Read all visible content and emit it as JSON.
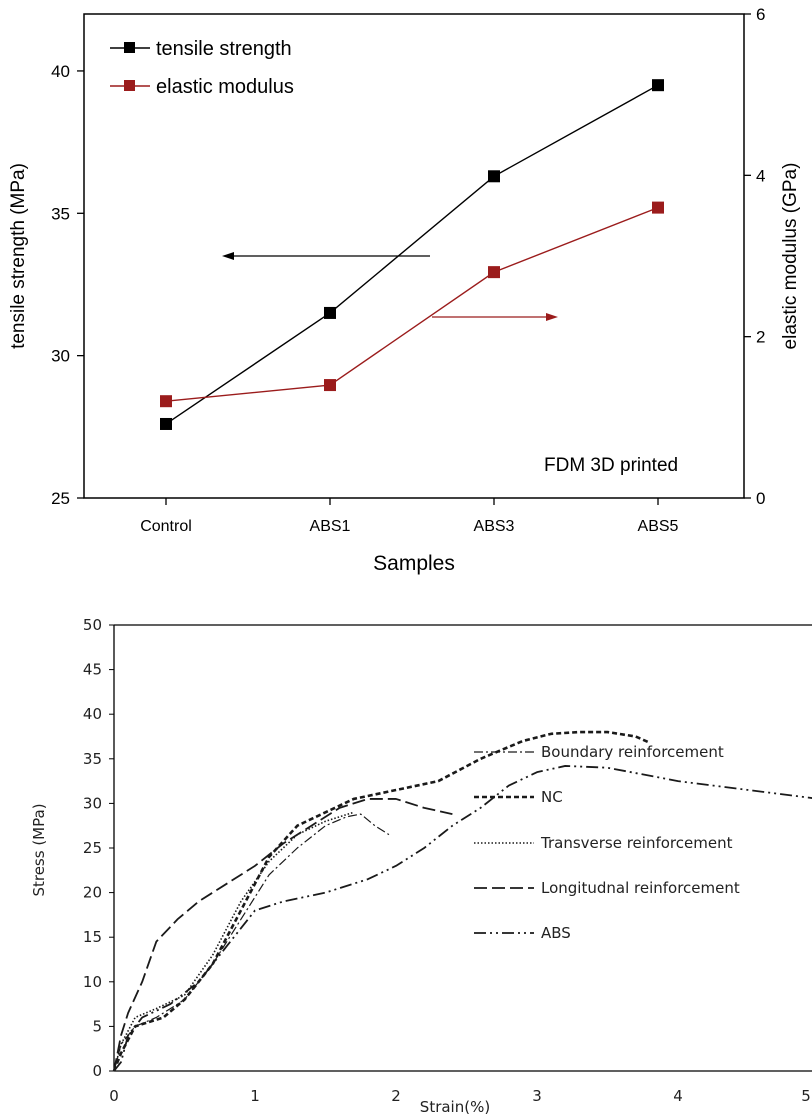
{
  "chart_data": [
    {
      "type": "line",
      "categories": [
        "Control",
        "ABS1",
        "ABS3",
        "ABS5"
      ],
      "xlabel": "Samples",
      "ylabel": "tensile strength (MPa)",
      "y2label": "elastic modulus (GPa)",
      "ylim": [
        25,
        42
      ],
      "y2lim": [
        0,
        6
      ],
      "y_ticks": [
        "25",
        "30",
        "35",
        "40"
      ],
      "y2_ticks": [
        "0",
        "2",
        "4",
        "6"
      ],
      "annotation": "FDM 3D printed",
      "legend_position": "top-left",
      "series": [
        {
          "name": "tensile strength",
          "axis": "left",
          "color": "#000000",
          "values": [
            27.6,
            31.5,
            36.3,
            39.5
          ]
        },
        {
          "name": "elastic modulus",
          "axis": "right",
          "color": "#9b1c1c",
          "values": [
            1.2,
            1.4,
            2.8,
            3.6
          ]
        }
      ]
    },
    {
      "type": "line",
      "xlabel": "Strain(%)",
      "ylabel": "Stress (MPa)",
      "xlim": [
        0,
        5
      ],
      "ylim": [
        0,
        50
      ],
      "x_ticks": [
        "0",
        "1",
        "2",
        "3",
        "4",
        "5"
      ],
      "y_ticks": [
        "0",
        "5",
        "10",
        "15",
        "20",
        "25",
        "30",
        "35",
        "40",
        "45",
        "50"
      ],
      "legend_position": "center-right",
      "series": [
        {
          "name": "Boundary reinforcement",
          "dash": "9 3 2 3",
          "width": 1.2,
          "x": [
            0,
            0.05,
            0.15,
            0.3,
            0.5,
            0.7,
            0.9,
            1.1,
            1.3,
            1.5,
            1.65,
            1.75,
            1.85,
            1.95
          ],
          "y": [
            0,
            3,
            5,
            6,
            8,
            12,
            17,
            22,
            25,
            27.5,
            28.5,
            28.8,
            27.5,
            26.5
          ]
        },
        {
          "name": "NC",
          "dash": "5 3",
          "width": 2.6,
          "x": [
            0,
            0.05,
            0.15,
            0.35,
            0.5,
            0.7,
            0.9,
            1.1,
            1.3,
            1.5,
            1.7,
            2.0,
            2.3,
            2.6,
            2.9,
            3.1,
            3.3,
            3.5,
            3.7,
            3.8
          ],
          "y": [
            0,
            2,
            5,
            6,
            8,
            12,
            18,
            24,
            27.5,
            29,
            30.5,
            31.5,
            32.5,
            35,
            37,
            37.8,
            38,
            38,
            37.5,
            36.8
          ]
        },
        {
          "name": "Transverse reinforcement",
          "dash": "1.5 2",
          "width": 1.6,
          "x": [
            0,
            0.05,
            0.15,
            0.3,
            0.5,
            0.7,
            0.9,
            1.1,
            1.3,
            1.5,
            1.7
          ],
          "y": [
            0,
            3,
            6,
            7,
            8.5,
            13,
            19,
            23.5,
            26.5,
            28,
            29
          ]
        },
        {
          "name": "Longitudnal reinforcement",
          "dash": "13 5",
          "width": 1.8,
          "x": [
            0,
            0.05,
            0.1,
            0.2,
            0.3,
            0.45,
            0.6,
            0.8,
            1.0,
            1.2,
            1.4,
            1.6,
            1.8,
            2.0,
            2.2,
            2.4
          ],
          "y": [
            0,
            4,
            6.5,
            10,
            14.5,
            17,
            19,
            21,
            23,
            25.5,
            27.5,
            29.5,
            30.5,
            30.5,
            29.5,
            28.8
          ]
        },
        {
          "name": "ABS",
          "dash": "12 4 2 4 2 4",
          "width": 1.8,
          "x": [
            0,
            0.05,
            0.1,
            0.2,
            0.4,
            0.6,
            0.8,
            1.0,
            1.2,
            1.5,
            1.8,
            2.0,
            2.2,
            2.4,
            2.6,
            2.8,
            3.0,
            3.2,
            3.5,
            4.0,
            4.5,
            5.0
          ],
          "y": [
            0,
            1,
            4,
            6,
            7.5,
            10,
            14,
            18,
            19,
            20,
            21.5,
            23,
            25,
            27.5,
            29.5,
            32,
            33.5,
            34.2,
            34,
            32.5,
            31.5,
            30.5
          ]
        }
      ]
    }
  ]
}
